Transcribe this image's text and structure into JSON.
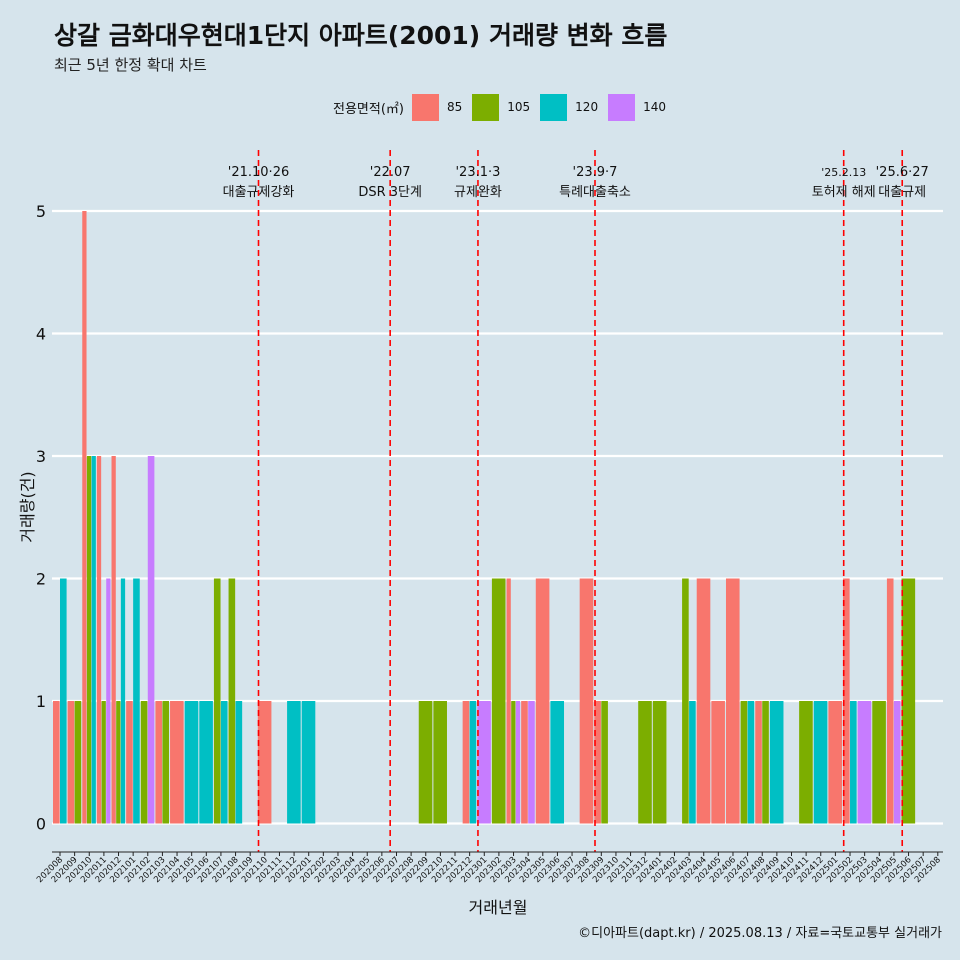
{
  "chart_data": {
    "type": "bar",
    "title": "상갈 금화대우현대1단지 아파트(2001) 거래량 변화 흐름",
    "subtitle": "최근 5년 한정 확대 차트",
    "xlabel": "거래년월",
    "ylabel": "거래량(건)",
    "ylim": [
      0,
      5
    ],
    "yticks": [
      0,
      1,
      2,
      3,
      4,
      5
    ],
    "grid": true,
    "legend": {
      "title": "전용면적(㎡)",
      "position": "top"
    },
    "months": [
      "202008",
      "202009",
      "202010",
      "202011",
      "202012",
      "202101",
      "202102",
      "202103",
      "202104",
      "202105",
      "202106",
      "202107",
      "202108",
      "202109",
      "202110",
      "202111",
      "202112",
      "202201",
      "202202",
      "202203",
      "202204",
      "202205",
      "202206",
      "202207",
      "202208",
      "202209",
      "202210",
      "202211",
      "202212",
      "202301",
      "202302",
      "202303",
      "202304",
      "202305",
      "202306",
      "202307",
      "202308",
      "202309",
      "202310",
      "202311",
      "202312",
      "202401",
      "202402",
      "202403",
      "202404",
      "202405",
      "202406",
      "202407",
      "202408",
      "202409",
      "202410",
      "202411",
      "202412",
      "202501",
      "202502",
      "202503",
      "202504",
      "202505",
      "202506",
      "202507",
      "202508"
    ],
    "series": [
      {
        "name": "85",
        "color": "#f8766d",
        "values": [
          1,
          1,
          5,
          3,
          3,
          1,
          0,
          1,
          1,
          0,
          0,
          0,
          0,
          0,
          1,
          0,
          0,
          0,
          0,
          0,
          0,
          0,
          0,
          0,
          0,
          0,
          0,
          0,
          1,
          0,
          0,
          2,
          1,
          2,
          0,
          0,
          2,
          1,
          0,
          0,
          0,
          0,
          0,
          0,
          2,
          1,
          2,
          0,
          1,
          0,
          0,
          0,
          0,
          1,
          2,
          0,
          0,
          2,
          0,
          0,
          0
        ]
      },
      {
        "name": "105",
        "color": "#7cae00",
        "values": [
          0,
          1,
          3,
          1,
          1,
          0,
          1,
          1,
          0,
          0,
          0,
          2,
          2,
          0,
          0,
          0,
          0,
          0,
          0,
          0,
          0,
          0,
          0,
          0,
          0,
          1,
          1,
          0,
          0,
          0,
          2,
          1,
          0,
          0,
          0,
          0,
          0,
          1,
          0,
          0,
          1,
          1,
          0,
          2,
          0,
          0,
          0,
          1,
          1,
          0,
          0,
          1,
          0,
          0,
          0,
          0,
          1,
          0,
          2,
          0,
          0
        ]
      },
      {
        "name": "120",
        "color": "#00bfc4",
        "values": [
          2,
          0,
          3,
          0,
          2,
          2,
          0,
          0,
          0,
          1,
          1,
          1,
          1,
          0,
          0,
          0,
          1,
          1,
          0,
          0,
          0,
          0,
          0,
          0,
          0,
          0,
          0,
          0,
          1,
          0,
          0,
          0,
          0,
          0,
          1,
          0,
          0,
          0,
          0,
          0,
          0,
          0,
          0,
          1,
          0,
          0,
          0,
          1,
          0,
          1,
          0,
          0,
          1,
          0,
          1,
          0,
          0,
          0,
          0,
          0,
          0
        ]
      },
      {
        "name": "140",
        "color": "#c77cff",
        "values": [
          0,
          0,
          0,
          2,
          0,
          0,
          3,
          0,
          0,
          0,
          0,
          0,
          0,
          0,
          0,
          0,
          0,
          0,
          0,
          0,
          0,
          0,
          0,
          0,
          0,
          0,
          0,
          0,
          0,
          1,
          0,
          1,
          1,
          0,
          0,
          0,
          0,
          0,
          0,
          0,
          0,
          0,
          0,
          0,
          0,
          0,
          0,
          0,
          0,
          0,
          0,
          0,
          0,
          0,
          0,
          1,
          0,
          1,
          0,
          0,
          0
        ]
      }
    ],
    "events": [
      {
        "month": "202110",
        "date": "'21.10·26",
        "label": "대출규제강화"
      },
      {
        "month": "202207",
        "date": "'22.07",
        "label": "DSR 3단계"
      },
      {
        "month": "202301",
        "date": "'23.1·3",
        "label": "규제완화"
      },
      {
        "month": "202309",
        "date": "'23.9·7",
        "label": "특례대출축소"
      },
      {
        "month": "202502",
        "date": "'25.2.13",
        "label": "토허제 해제"
      },
      {
        "month": "202506",
        "date": "'25.6·27",
        "label": "대출규제"
      }
    ]
  },
  "caption": "©디아파트(dapt.kr) / 2025.08.13 / 자료=국토교통부 실거래가"
}
